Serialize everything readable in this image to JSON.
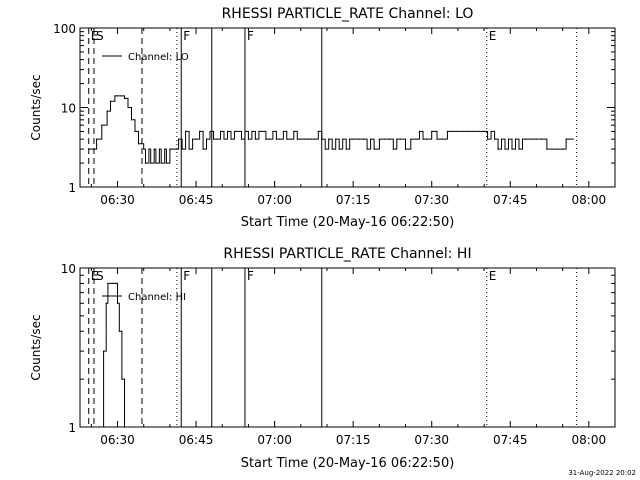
{
  "footer_timestamp": "31-Aug-2022 20:02",
  "chart_data": [
    {
      "type": "line",
      "title": "RHESSI PARTICLE_RATE Channel: LO",
      "xlabel": "Start Time (20-May-16 06:22:50)",
      "ylabel": "Counts/sec",
      "yscale": "log",
      "ylim": [
        1,
        100
      ],
      "y_ticks": [
        {
          "value": 1,
          "label": "1"
        },
        {
          "value": 10,
          "label": "10"
        },
        {
          "value": 100,
          "label": "100"
        }
      ],
      "xlim": [
        "06:22:50",
        "08:05:00"
      ],
      "x_ticks": [
        {
          "value": "06:30",
          "label": "06:30"
        },
        {
          "value": "06:45",
          "label": "06:45"
        },
        {
          "value": "07:00",
          "label": "07:00"
        },
        {
          "value": "07:15",
          "label": "07:15"
        },
        {
          "value": "07:30",
          "label": "07:30"
        },
        {
          "value": "07:45",
          "label": "07:45"
        },
        {
          "value": "08:00",
          "label": "08:00"
        }
      ],
      "legend": {
        "entries": [
          "Channel: LO"
        ],
        "placement": "top-left"
      },
      "markers": [
        {
          "time": "06:24:30",
          "style": "dashed",
          "label": "E"
        },
        {
          "time": "06:25:30",
          "style": "dashed",
          "label": "S"
        },
        {
          "time": "06:34:40",
          "style": "dashed",
          "label": ""
        },
        {
          "time": "06:41:20",
          "style": "dotted",
          "label": ""
        },
        {
          "time": "06:42:10",
          "style": "solid",
          "label": "F"
        },
        {
          "time": "06:48:00",
          "style": "solid",
          "label": ""
        },
        {
          "time": "06:54:20",
          "style": "solid",
          "label": "F"
        },
        {
          "time": "07:09:00",
          "style": "solid",
          "label": ""
        },
        {
          "time": "07:40:30",
          "style": "dotted",
          "label": "E"
        },
        {
          "time": "07:57:40",
          "style": "dotted",
          "label": ""
        }
      ],
      "series": [
        {
          "name": "Channel: LO",
          "x": [
            "06:24:40",
            "06:26:00",
            "06:27:00",
            "06:28:00",
            "06:28:40",
            "06:29:30",
            "06:30:00",
            "06:30:40",
            "06:31:20",
            "06:32:00",
            "06:32:40",
            "06:33:20",
            "06:34:00",
            "06:35:00",
            "06:35:20",
            "06:36:00",
            "06:36:20",
            "06:37:00",
            "06:37:20",
            "06:38:00",
            "06:38:20",
            "06:39:00",
            "06:39:20",
            "06:40:00",
            "06:40:20",
            "06:41:00",
            "06:41:40",
            "06:42:20",
            "06:43:00",
            "06:43:40",
            "06:44:20",
            "06:45:00",
            "06:45:40",
            "06:46:20",
            "06:47:00",
            "06:47:40",
            "06:48:20",
            "06:49:00",
            "06:49:40",
            "06:50:20",
            "06:51:00",
            "06:51:40",
            "06:52:20",
            "06:53:00",
            "06:53:40",
            "06:54:20",
            "06:55:00",
            "06:55:40",
            "06:56:20",
            "06:57:00",
            "06:57:40",
            "06:58:20",
            "06:59:00",
            "06:59:40",
            "07:00:20",
            "07:01:00",
            "07:01:40",
            "07:02:20",
            "07:03:00",
            "07:03:40",
            "07:04:20",
            "07:05:00",
            "07:05:40",
            "07:06:20",
            "07:07:00",
            "07:07:40",
            "07:08:20",
            "07:09:00",
            "07:09:40",
            "07:10:20",
            "07:11:00",
            "07:11:40",
            "07:12:20",
            "07:13:00",
            "07:13:40",
            "07:14:20",
            "07:15:00",
            "07:16:00",
            "07:17:00",
            "07:17:40",
            "07:18:20",
            "07:19:00",
            "07:20:00",
            "07:21:00",
            "07:22:00",
            "07:22:40",
            "07:23:20",
            "07:24:00",
            "07:25:00",
            "07:26:00",
            "07:27:00",
            "07:27:40",
            "07:28:20",
            "07:29:00",
            "07:30:00",
            "07:31:00",
            "07:32:00",
            "07:33:00",
            "07:34:00",
            "07:35:00",
            "07:36:00",
            "07:37:00",
            "07:38:00",
            "07:39:00",
            "07:40:00",
            "07:40:40",
            "07:41:20",
            "07:42:00",
            "07:42:40",
            "07:43:20",
            "07:44:00",
            "07:44:40",
            "07:45:20",
            "07:46:00",
            "07:46:40",
            "07:47:20",
            "07:48:00",
            "07:49:00",
            "07:50:00",
            "07:51:00",
            "07:52:00",
            "07:53:00",
            "07:54:00",
            "07:55:00",
            "07:55:40",
            "07:56:20",
            "07:57:00"
          ],
          "values": [
            3,
            4,
            6,
            9,
            12,
            14,
            14,
            14,
            13,
            10,
            7,
            5,
            3.5,
            3,
            2,
            3,
            2,
            3,
            2,
            3,
            2,
            3,
            2,
            3,
            3,
            3,
            4,
            3,
            5,
            3,
            4,
            4,
            5,
            3,
            4,
            5,
            4,
            4,
            5,
            4,
            5,
            4,
            5,
            5,
            4,
            5,
            4,
            5,
            4,
            5,
            5,
            4,
            4,
            5,
            4,
            4,
            5,
            4,
            4,
            5,
            4,
            4,
            4,
            4,
            4,
            4,
            5,
            4,
            3,
            4,
            3,
            4,
            3,
            4,
            3,
            4,
            4,
            4,
            4,
            3,
            4,
            3,
            4,
            4,
            4,
            3,
            4,
            4,
            3,
            4,
            4,
            5,
            4,
            4,
            5,
            4,
            4,
            5,
            5,
            5,
            5,
            5,
            5,
            5,
            5,
            4,
            5,
            4,
            3,
            4,
            3,
            4,
            3,
            4,
            3,
            4,
            4,
            4,
            4,
            4,
            3,
            3,
            3,
            3,
            4,
            4,
            4
          ]
        }
      ]
    },
    {
      "type": "line",
      "title": "RHESSI PARTICLE_RATE Channel: HI",
      "xlabel": "Start Time (20-May-16 06:22:50)",
      "ylabel": "Counts/sec",
      "yscale": "log",
      "ylim": [
        1,
        10
      ],
      "y_ticks": [
        {
          "value": 1,
          "label": "1"
        },
        {
          "value": 10,
          "label": "10"
        }
      ],
      "xlim": [
        "06:22:50",
        "08:05:00"
      ],
      "x_ticks": [
        {
          "value": "06:30",
          "label": "06:30"
        },
        {
          "value": "06:45",
          "label": "06:45"
        },
        {
          "value": "07:00",
          "label": "07:00"
        },
        {
          "value": "07:15",
          "label": "07:15"
        },
        {
          "value": "07:30",
          "label": "07:30"
        },
        {
          "value": "07:45",
          "label": "07:45"
        },
        {
          "value": "08:00",
          "label": "08:00"
        }
      ],
      "legend": {
        "entries": [
          "Channel: HI"
        ],
        "placement": "top-left"
      },
      "markers": [
        {
          "time": "06:24:30",
          "style": "dashed",
          "label": "E"
        },
        {
          "time": "06:25:30",
          "style": "dashed",
          "label": "S"
        },
        {
          "time": "06:34:40",
          "style": "dashed",
          "label": ""
        },
        {
          "time": "06:41:20",
          "style": "dotted",
          "label": ""
        },
        {
          "time": "06:42:10",
          "style": "solid",
          "label": "F"
        },
        {
          "time": "06:48:00",
          "style": "solid",
          "label": ""
        },
        {
          "time": "06:54:20",
          "style": "solid",
          "label": "F"
        },
        {
          "time": "07:09:00",
          "style": "solid",
          "label": ""
        },
        {
          "time": "07:40:30",
          "style": "dotted",
          "label": "E"
        },
        {
          "time": "07:57:40",
          "style": "dotted",
          "label": ""
        }
      ],
      "series": [
        {
          "name": "Channel: HI",
          "x": [
            "06:26:40",
            "06:27:20",
            "06:27:50",
            "06:28:10",
            "06:29:00",
            "06:29:40",
            "06:30:00",
            "06:30:20",
            "06:30:50",
            "06:31:20"
          ],
          "values": [
            1,
            3,
            6,
            8,
            8,
            8,
            6,
            4,
            2,
            1
          ]
        }
      ]
    }
  ]
}
